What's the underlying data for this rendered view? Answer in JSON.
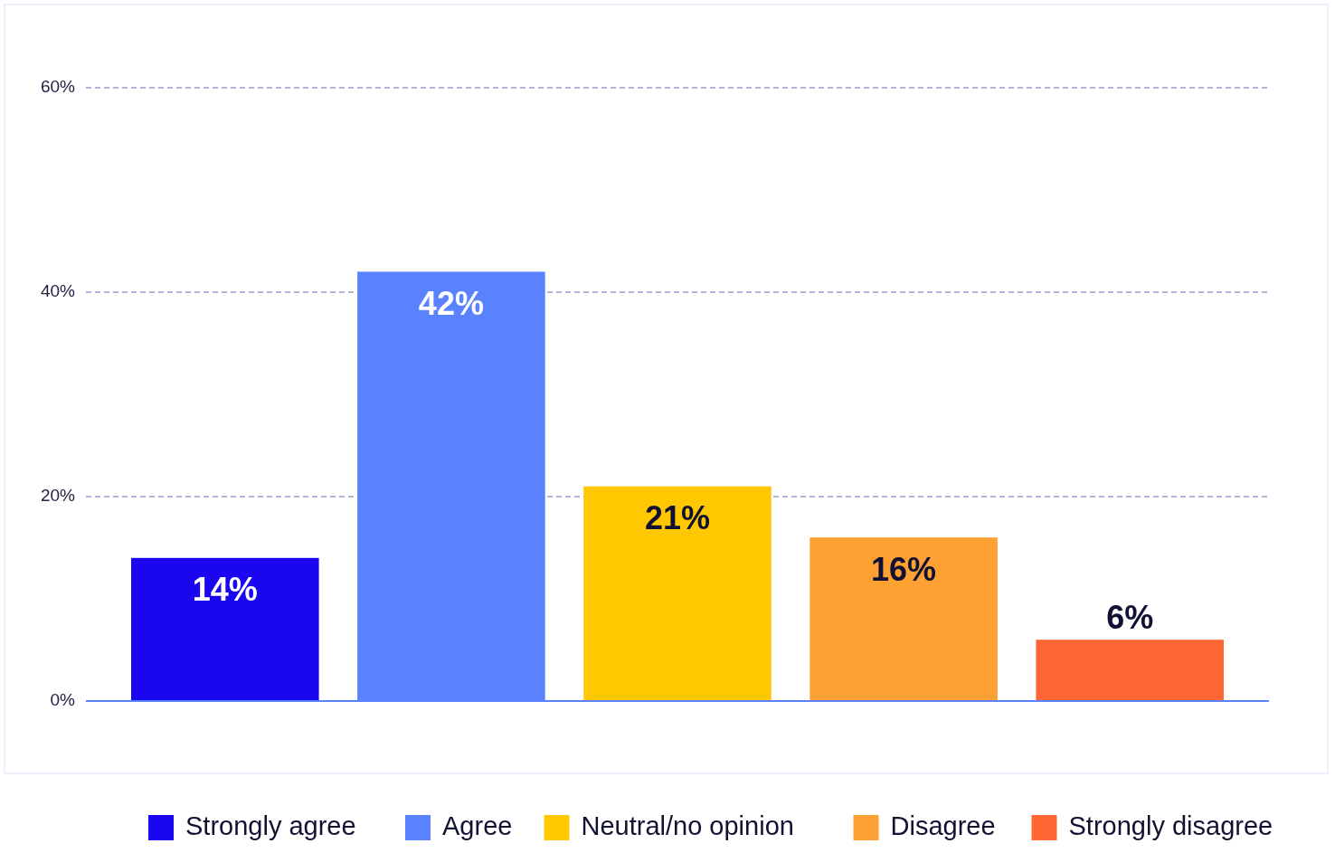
{
  "chart_data": {
    "type": "bar",
    "stacked": true,
    "categories": [
      null,
      null,
      null,
      null,
      null
    ],
    "series": [
      {
        "name": "Strongly agree",
        "color": "#1a07ef",
        "values": [
          14,
          null,
          null,
          null,
          null
        ],
        "value_labels": [
          "14%",
          null,
          null,
          null,
          null
        ]
      },
      {
        "name": "Agree",
        "color": "#5a82fe",
        "values": [
          null,
          42,
          null,
          null,
          null
        ],
        "value_labels": [
          null,
          "42%",
          null,
          null,
          null
        ]
      },
      {
        "name": "Neutral/no opinion",
        "color": "#ffc800",
        "values": [
          null,
          null,
          21,
          null,
          null
        ],
        "value_labels": [
          null,
          null,
          "21%",
          null,
          null
        ]
      },
      {
        "name": "Disagree",
        "color": "#ffa033",
        "values": [
          null,
          null,
          null,
          16,
          null
        ],
        "value_labels": [
          null,
          null,
          null,
          "16%",
          null
        ]
      },
      {
        "name": "Strongly disagree",
        "color": "#ff6633",
        "values": [
          null,
          null,
          null,
          null,
          6
        ],
        "value_labels": [
          null,
          null,
          null,
          null,
          "6%"
        ]
      }
    ],
    "ylim": [
      0,
      60
    ],
    "yticks": [
      {
        "value": 0,
        "label": "0%"
      },
      {
        "value": 20,
        "label": "20%"
      },
      {
        "value": 40,
        "label": "40%"
      },
      {
        "value": 60,
        "label": "60%"
      }
    ],
    "grid": "y",
    "legend": "bottom",
    "tick_labels": "y"
  }
}
